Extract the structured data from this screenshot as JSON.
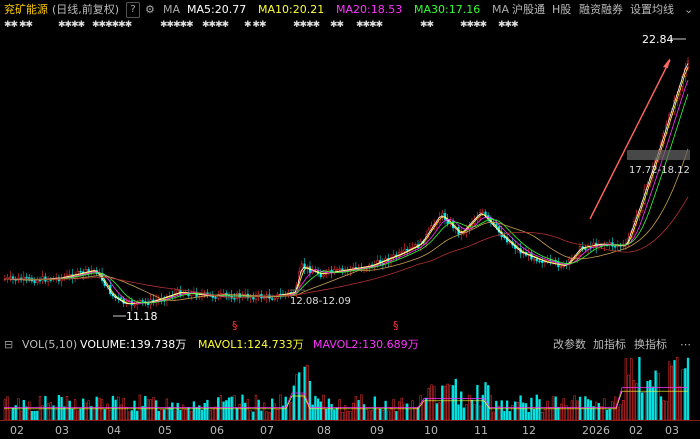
{
  "header": {
    "stock_name": "兖矿能源",
    "period": "(日线,前复权)",
    "help": "?",
    "ma_label": "MA",
    "ma5": "MA5:20.77",
    "ma10": "MA10:20.21",
    "ma20": "MA20:18.53",
    "ma30": "MA30:17.16",
    "ma_more": "MA",
    "links": [
      "沪股通",
      "H股",
      "融资融券",
      "设置均线"
    ],
    "colors": {
      "ma5": "#ffffff",
      "ma10": "#ffff33",
      "ma20": "#ff33ff",
      "ma30": "#33ff33"
    }
  },
  "stars_row": [
    "✱✱ ✱✱",
    "✱✱✱✱",
    "✱✱✱✱✱✱",
    "✱✱✱✱✱",
    "✱✱✱✱",
    "✱ ✱✱",
    "✱✱✱✱",
    "✱✱",
    "✱✱✱✱",
    "✱✱",
    "✱✱✱✱",
    "✱✱✱"
  ],
  "annotations": {
    "high": "22.84",
    "low": "11.18",
    "gap": "12.08-12.09",
    "gap2": "17.72-18.12",
    "marker": "§"
  },
  "volume_header": {
    "toggle": "⊟",
    "vol": "VOL(5,10)",
    "volume": "VOLUME:139.738万",
    "mavol1": "MAVOL1:124.733万",
    "mavol2": "MAVOL2:130.689万",
    "buttons": [
      "改参数",
      "加指标",
      "换指标"
    ],
    "more": "⋯"
  },
  "x_axis": [
    "02",
    "03",
    "04",
    "05",
    "06",
    "07",
    "08",
    "09",
    "10",
    "11",
    "12",
    "2026",
    "02",
    "03"
  ],
  "chart_data": {
    "type": "candlestick",
    "price_high": 22.84,
    "price_low": 11.18,
    "current_ma5": 20.77
  }
}
